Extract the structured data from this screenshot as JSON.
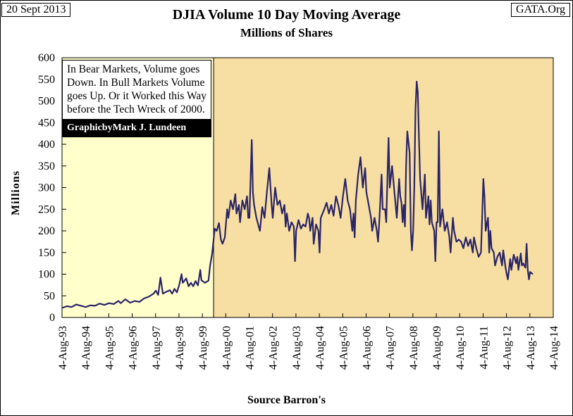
{
  "header": {
    "date": "20 Sept 2013",
    "source_site": "GATA.Org",
    "title": "DJIA Volume  10 Day Moving Average",
    "subtitle": "Millions of Shares"
  },
  "annotation": {
    "note": "In Bear Markets, Volume goes Down.  In Bull Markets Volume goes Up.  Or it Worked this Way before the Tech Wreck of 2000.",
    "credit": "GraphicbyMark J. Lundeen"
  },
  "colors": {
    "bull_shading": "#ffffcc",
    "bear_shading": "#f7dfa3",
    "series_line": "#2b2466"
  },
  "chart_data": {
    "type": "line",
    "title": "DJIA Volume  10 Day Moving Average",
    "subtitle": "Millions of Shares",
    "xlabel": "Source Barron's",
    "ylabel": "Millions",
    "ylim": [
      0,
      600
    ],
    "yticks": [
      0,
      50,
      100,
      150,
      200,
      250,
      300,
      350,
      400,
      450,
      500,
      550,
      600
    ],
    "xlim": [
      1993.59,
      2014.59
    ],
    "xticks": [
      {
        "x": 1993.59,
        "label": "4-Aug-93"
      },
      {
        "x": 1994.59,
        "label": "4-Aug-94"
      },
      {
        "x": 1995.59,
        "label": "4-Aug-95"
      },
      {
        "x": 1996.59,
        "label": "4-Aug-96"
      },
      {
        "x": 1997.59,
        "label": "4-Aug-97"
      },
      {
        "x": 1998.59,
        "label": "4-Aug-98"
      },
      {
        "x": 1999.59,
        "label": "4-Aug-99"
      },
      {
        "x": 2000.59,
        "label": "4-Aug-00"
      },
      {
        "x": 2001.59,
        "label": "4-Aug-01"
      },
      {
        "x": 2002.59,
        "label": "4-Aug-02"
      },
      {
        "x": 2003.59,
        "label": "4-Aug-03"
      },
      {
        "x": 2004.59,
        "label": "4-Aug-04"
      },
      {
        "x": 2005.59,
        "label": "4-Aug-05"
      },
      {
        "x": 2006.59,
        "label": "4-Aug-06"
      },
      {
        "x": 2007.59,
        "label": "4-Aug-07"
      },
      {
        "x": 2008.59,
        "label": "4-Aug-08"
      },
      {
        "x": 2009.59,
        "label": "4-Aug-09"
      },
      {
        "x": 2010.59,
        "label": "4-Aug-10"
      },
      {
        "x": 2011.59,
        "label": "4-Aug-11"
      },
      {
        "x": 2012.59,
        "label": "4-Aug-12"
      },
      {
        "x": 2013.59,
        "label": "4-Aug-13"
      },
      {
        "x": 2014.59,
        "label": "4-Aug-14"
      }
    ],
    "regions": [
      {
        "name": "bull",
        "from": 1993.59,
        "to": 2000.07
      },
      {
        "name": "bear",
        "from": 2000.07,
        "to": 2014.59
      }
    ],
    "series": [
      {
        "name": "DJIA Volume 10 Day Moving Average",
        "points": [
          [
            1993.59,
            22
          ],
          [
            1993.8,
            26
          ],
          [
            1994.0,
            24
          ],
          [
            1994.2,
            30
          ],
          [
            1994.4,
            27
          ],
          [
            1994.6,
            24
          ],
          [
            1994.8,
            28
          ],
          [
            1995.0,
            27
          ],
          [
            1995.2,
            32
          ],
          [
            1995.4,
            29
          ],
          [
            1995.6,
            33
          ],
          [
            1995.8,
            31
          ],
          [
            1996.0,
            38
          ],
          [
            1996.1,
            33
          ],
          [
            1996.3,
            42
          ],
          [
            1996.5,
            34
          ],
          [
            1996.7,
            38
          ],
          [
            1996.9,
            36
          ],
          [
            1997.1,
            44
          ],
          [
            1997.3,
            48
          ],
          [
            1997.5,
            55
          ],
          [
            1997.6,
            62
          ],
          [
            1997.7,
            52
          ],
          [
            1997.8,
            92
          ],
          [
            1997.9,
            55
          ],
          [
            1998.0,
            58
          ],
          [
            1998.2,
            63
          ],
          [
            1998.3,
            55
          ],
          [
            1998.4,
            66
          ],
          [
            1998.5,
            58
          ],
          [
            1998.6,
            75
          ],
          [
            1998.7,
            100
          ],
          [
            1998.75,
            80
          ],
          [
            1998.9,
            90
          ],
          [
            1999.0,
            72
          ],
          [
            1999.1,
            80
          ],
          [
            1999.2,
            72
          ],
          [
            1999.3,
            84
          ],
          [
            1999.4,
            74
          ],
          [
            1999.5,
            110
          ],
          [
            1999.55,
            86
          ],
          [
            1999.7,
            80
          ],
          [
            1999.85,
            85
          ],
          [
            1999.92,
            120
          ],
          [
            2000.0,
            145
          ],
          [
            2000.07,
            180
          ],
          [
            2000.12,
            205
          ],
          [
            2000.2,
            200
          ],
          [
            2000.3,
            218
          ],
          [
            2000.38,
            180
          ],
          [
            2000.45,
            170
          ],
          [
            2000.55,
            185
          ],
          [
            2000.65,
            250
          ],
          [
            2000.7,
            230
          ],
          [
            2000.8,
            270
          ],
          [
            2000.9,
            250
          ],
          [
            2001.0,
            285
          ],
          [
            2001.05,
            240
          ],
          [
            2001.15,
            260
          ],
          [
            2001.2,
            220
          ],
          [
            2001.3,
            270
          ],
          [
            2001.4,
            250
          ],
          [
            2001.5,
            280
          ],
          [
            2001.55,
            230
          ],
          [
            2001.6,
            230
          ],
          [
            2001.7,
            410
          ],
          [
            2001.75,
            290
          ],
          [
            2001.8,
            260
          ],
          [
            2001.9,
            230
          ],
          [
            2002.0,
            210
          ],
          [
            2002.05,
            200
          ],
          [
            2002.15,
            255
          ],
          [
            2002.25,
            230
          ],
          [
            2002.35,
            290
          ],
          [
            2002.45,
            345
          ],
          [
            2002.55,
            260
          ],
          [
            2002.6,
            230
          ],
          [
            2002.7,
            300
          ],
          [
            2002.8,
            260
          ],
          [
            2002.9,
            270
          ],
          [
            2003.0,
            240
          ],
          [
            2003.1,
            260
          ],
          [
            2003.15,
            210
          ],
          [
            2003.2,
            240
          ],
          [
            2003.3,
            200
          ],
          [
            2003.4,
            220
          ],
          [
            2003.5,
            210
          ],
          [
            2003.55,
            130
          ],
          [
            2003.6,
            200
          ],
          [
            2003.7,
            225
          ],
          [
            2003.8,
            205
          ],
          [
            2003.9,
            215
          ],
          [
            2004.0,
            210
          ],
          [
            2004.1,
            240
          ],
          [
            2004.15,
            230
          ],
          [
            2004.2,
            200
          ],
          [
            2004.3,
            230
          ],
          [
            2004.35,
            170
          ],
          [
            2004.45,
            215
          ],
          [
            2004.55,
            200
          ],
          [
            2004.6,
            150
          ],
          [
            2004.65,
            230
          ],
          [
            2004.8,
            250
          ],
          [
            2004.9,
            265
          ],
          [
            2005.0,
            240
          ],
          [
            2005.1,
            260
          ],
          [
            2005.2,
            235
          ],
          [
            2005.3,
            280
          ],
          [
            2005.4,
            260
          ],
          [
            2005.5,
            230
          ],
          [
            2005.6,
            280
          ],
          [
            2005.7,
            320
          ],
          [
            2005.8,
            270
          ],
          [
            2005.9,
            250
          ],
          [
            2006.0,
            200
          ],
          [
            2006.05,
            240
          ],
          [
            2006.1,
            185
          ],
          [
            2006.15,
            270
          ],
          [
            2006.25,
            330
          ],
          [
            2006.35,
            370
          ],
          [
            2006.45,
            300
          ],
          [
            2006.55,
            345
          ],
          [
            2006.6,
            290
          ],
          [
            2006.7,
            260
          ],
          [
            2006.8,
            230
          ],
          [
            2006.85,
            200
          ],
          [
            2006.95,
            230
          ],
          [
            2007.05,
            200
          ],
          [
            2007.1,
            175
          ],
          [
            2007.15,
            220
          ],
          [
            2007.25,
            330
          ],
          [
            2007.3,
            250
          ],
          [
            2007.4,
            250
          ],
          [
            2007.45,
            220
          ],
          [
            2007.55,
            415
          ],
          [
            2007.6,
            300
          ],
          [
            2007.7,
            350
          ],
          [
            2007.8,
            290
          ],
          [
            2007.9,
            230
          ],
          [
            2008.0,
            320
          ],
          [
            2008.05,
            280
          ],
          [
            2008.1,
            265
          ],
          [
            2008.15,
            220
          ],
          [
            2008.2,
            260
          ],
          [
            2008.25,
            210
          ],
          [
            2008.3,
            350
          ],
          [
            2008.35,
            430
          ],
          [
            2008.45,
            380
          ],
          [
            2008.5,
            200
          ],
          [
            2008.55,
            155
          ],
          [
            2008.6,
            200
          ],
          [
            2008.65,
            300
          ],
          [
            2008.7,
            480
          ],
          [
            2008.75,
            545
          ],
          [
            2008.8,
            520
          ],
          [
            2008.85,
            410
          ],
          [
            2008.9,
            320
          ],
          [
            2009.0,
            250
          ],
          [
            2009.1,
            330
          ],
          [
            2009.15,
            230
          ],
          [
            2009.25,
            280
          ],
          [
            2009.3,
            215
          ],
          [
            2009.35,
            270
          ],
          [
            2009.4,
            220
          ],
          [
            2009.5,
            200
          ],
          [
            2009.55,
            130
          ],
          [
            2009.6,
            220
          ],
          [
            2009.65,
            220
          ],
          [
            2009.7,
            430
          ],
          [
            2009.75,
            210
          ],
          [
            2009.85,
            250
          ],
          [
            2009.95,
            200
          ],
          [
            2010.05,
            220
          ],
          [
            2010.15,
            185
          ],
          [
            2010.2,
            150
          ],
          [
            2010.3,
            230
          ],
          [
            2010.35,
            200
          ],
          [
            2010.45,
            175
          ],
          [
            2010.55,
            180
          ],
          [
            2010.65,
            175
          ],
          [
            2010.75,
            160
          ],
          [
            2010.85,
            185
          ],
          [
            2010.95,
            165
          ],
          [
            2011.05,
            180
          ],
          [
            2011.15,
            150
          ],
          [
            2011.2,
            185
          ],
          [
            2011.3,
            160
          ],
          [
            2011.4,
            140
          ],
          [
            2011.5,
            150
          ],
          [
            2011.55,
            230
          ],
          [
            2011.6,
            320
          ],
          [
            2011.65,
            280
          ],
          [
            2011.7,
            200
          ],
          [
            2011.8,
            230
          ],
          [
            2011.85,
            150
          ],
          [
            2011.9,
            200
          ],
          [
            2011.95,
            160
          ],
          [
            2012.05,
            150
          ],
          [
            2012.1,
            120
          ],
          [
            2012.2,
            140
          ],
          [
            2012.3,
            150
          ],
          [
            2012.4,
            120
          ],
          [
            2012.45,
            155
          ],
          [
            2012.55,
            115
          ],
          [
            2012.6,
            100
          ],
          [
            2012.65,
            88
          ],
          [
            2012.75,
            135
          ],
          [
            2012.8,
            110
          ],
          [
            2012.9,
            145
          ],
          [
            2013.0,
            125
          ],
          [
            2013.05,
            140
          ],
          [
            2013.1,
            110
          ],
          [
            2013.2,
            148
          ],
          [
            2013.25,
            120
          ],
          [
            2013.3,
            125
          ],
          [
            2013.4,
            115
          ],
          [
            2013.45,
            170
          ],
          [
            2013.5,
            110
          ],
          [
            2013.55,
            88
          ],
          [
            2013.6,
            105
          ],
          [
            2013.72,
            100
          ]
        ]
      }
    ]
  }
}
